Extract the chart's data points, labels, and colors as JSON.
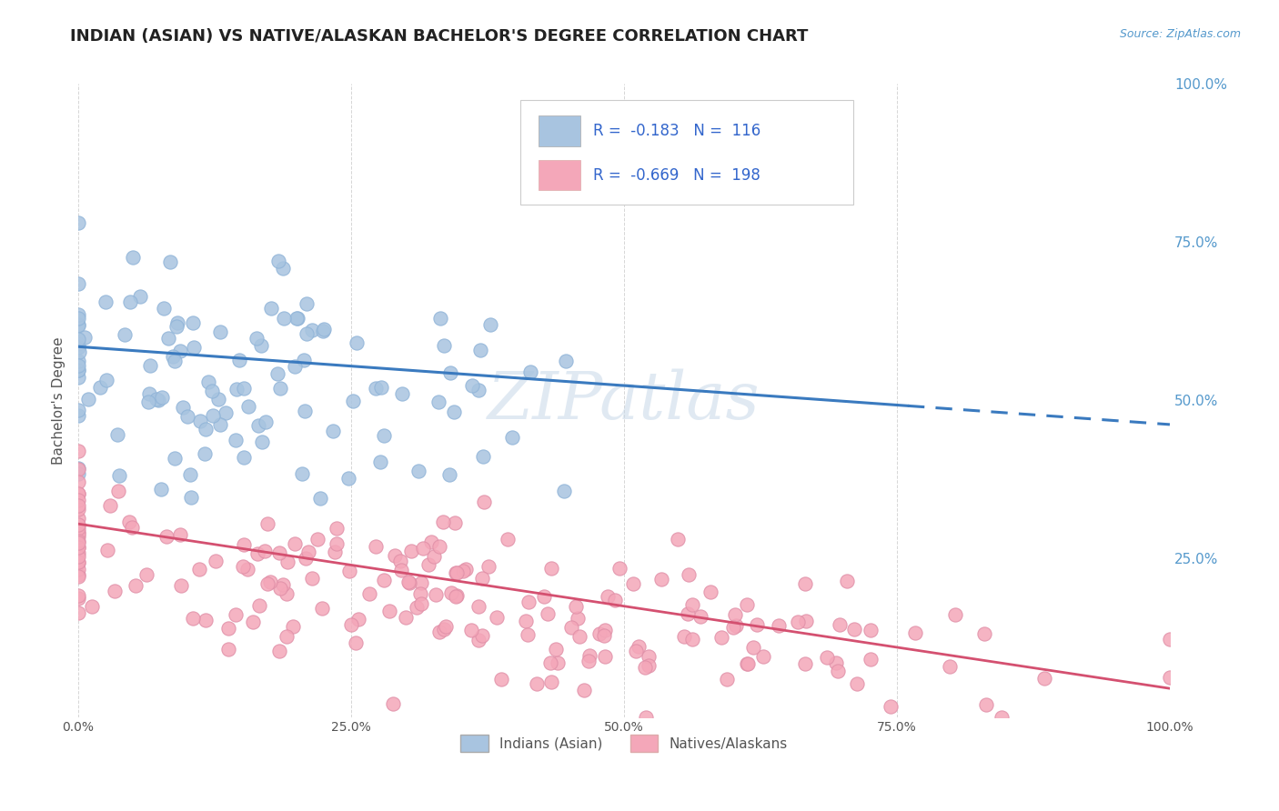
{
  "title": "INDIAN (ASIAN) VS NATIVE/ALASKAN BACHELOR'S DEGREE CORRELATION CHART",
  "source_text": "Source: ZipAtlas.com",
  "ylabel": "Bachelor's Degree",
  "xlim": [
    0.0,
    1.0
  ],
  "ylim": [
    0.0,
    1.0
  ],
  "xtick_labels": [
    "0.0%",
    "25.0%",
    "50.0%",
    "75.0%",
    "100.0%"
  ],
  "xtick_vals": [
    0.0,
    0.25,
    0.5,
    0.75,
    1.0
  ],
  "right_ytick_labels": [
    "25.0%",
    "50.0%",
    "75.0%",
    "100.0%"
  ],
  "right_ytick_vals": [
    0.25,
    0.5,
    0.75,
    1.0
  ],
  "blue_R": -0.183,
  "blue_N": 116,
  "pink_R": -0.669,
  "pink_N": 198,
  "blue_color": "#a8c4e0",
  "pink_color": "#f4a7b9",
  "blue_line_color": "#3a7abf",
  "pink_line_color": "#d45070",
  "legend_label_blue": "Indians (Asian)",
  "legend_label_pink": "Natives/Alaskans",
  "watermark": "ZIPatlas",
  "background_color": "#ffffff",
  "grid_color": "#cccccc",
  "title_color": "#222222",
  "axis_label_color": "#555555",
  "legend_R_N_color": "#3366cc",
  "right_axis_color": "#5599cc",
  "title_fontsize": 13,
  "ylabel_fontsize": 11,
  "tick_fontsize": 10,
  "blue_line_start_y": 0.585,
  "blue_line_end_y": 0.462,
  "blue_line_x_start": 0.0,
  "blue_line_solid_end": 0.76,
  "blue_line_dash_end": 1.0,
  "pink_line_start_y": 0.305,
  "pink_line_end_y": 0.045
}
